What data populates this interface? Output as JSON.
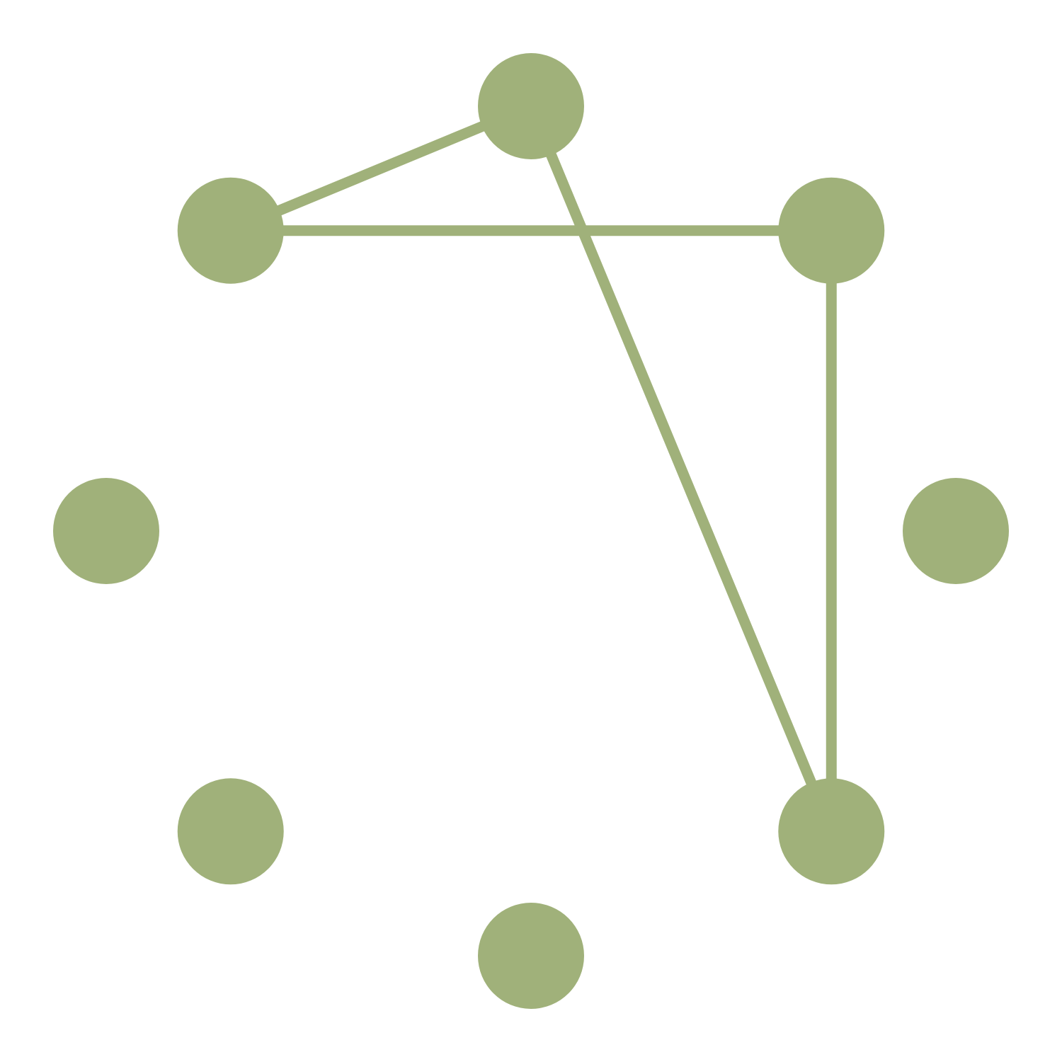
{
  "graph": {
    "node_color": "#a0b17a",
    "edge_color": "#a0b17a",
    "node_count": 8,
    "layout": "circle",
    "nodes": [
      {
        "id": "n0"
      },
      {
        "id": "n1"
      },
      {
        "id": "n2"
      },
      {
        "id": "n3"
      },
      {
        "id": "n4"
      },
      {
        "id": "n5"
      },
      {
        "id": "n6"
      },
      {
        "id": "n7"
      }
    ],
    "edges": [
      {
        "source": "n0",
        "target": "n7"
      },
      {
        "source": "n0",
        "target": "n3"
      },
      {
        "source": "n7",
        "target": "n1"
      },
      {
        "source": "n1",
        "target": "n3"
      }
    ]
  }
}
